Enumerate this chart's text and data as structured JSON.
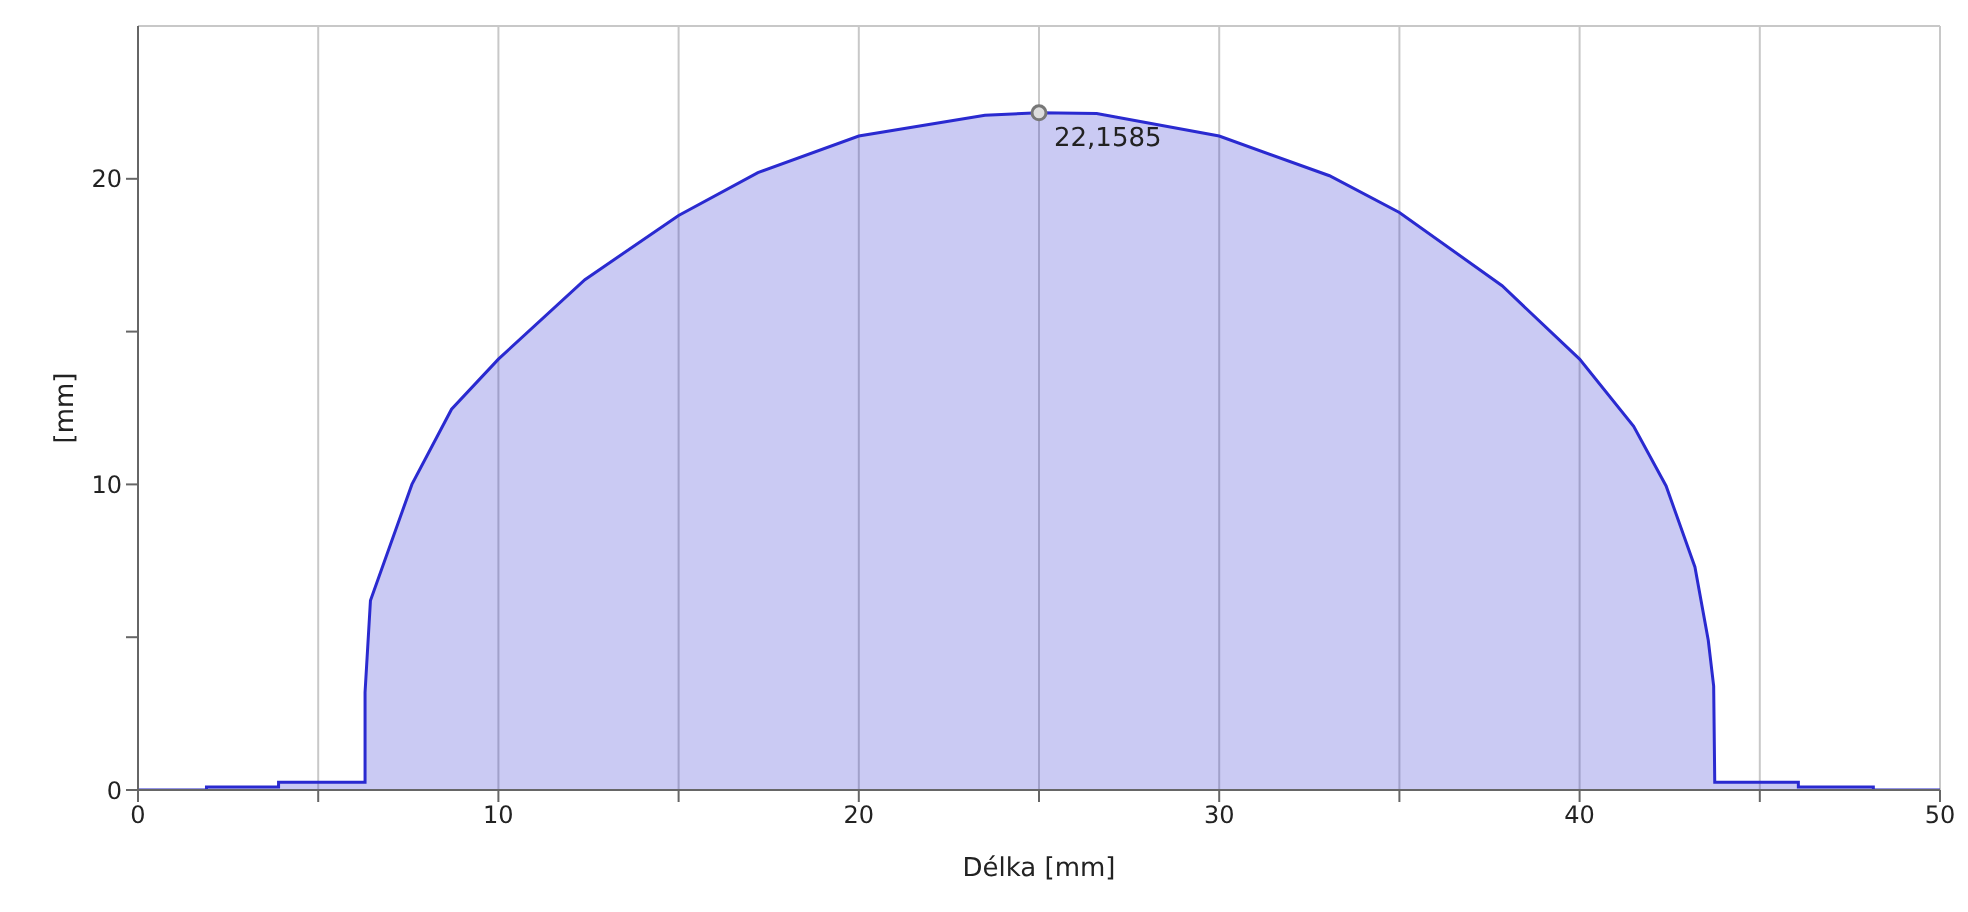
{
  "chart_data": {
    "type": "area",
    "xlabel": "Délka [mm]",
    "ylabel": "[mm]",
    "x": [
      0,
      1.9,
      1.9,
      3.9,
      3.9,
      6.3,
      6.3,
      6.45,
      7.6,
      8.7,
      10,
      12.4,
      15,
      17.2,
      20,
      23.5,
      25,
      26.6,
      30,
      33.06,
      35,
      37.85,
      40,
      41.5,
      42.4,
      43.2,
      43.57,
      43.72,
      43.75,
      46.07,
      46.07,
      48.15,
      48.15,
      50
    ],
    "series": [
      {
        "color": "#2a2ad0",
        "values": [
          0,
          0,
          0.1,
          0.1,
          0.25,
          0.25,
          3.2,
          6.2,
          10,
          12.46,
          14.1,
          16.7,
          18.8,
          20.2,
          21.4,
          22.08,
          22.1585,
          22.14,
          21.4,
          20.1,
          18.9,
          16.5,
          14.1,
          11.9,
          9.95,
          7.3,
          4.9,
          3.4,
          0.25,
          0.25,
          0.1,
          0.1,
          0,
          0
        ]
      }
    ],
    "xlim": [
      0,
      50
    ],
    "ylim": [
      0,
      25
    ],
    "xticks": [
      0,
      {
        "value": 5,
        "label": null
      },
      10,
      {
        "value": 15,
        "label": null
      },
      20,
      {
        "value": 25,
        "label": null
      },
      30,
      {
        "value": 35,
        "label": null
      },
      40,
      {
        "value": 45,
        "label": null
      },
      50
    ],
    "yticks": [
      0,
      {
        "value": 5,
        "label": null
      },
      10,
      {
        "value": 15,
        "label": null
      },
      20
    ],
    "grid": true,
    "annotations": [
      {
        "text": "22,1585",
        "x": 25,
        "y": 22.1585
      }
    ]
  }
}
